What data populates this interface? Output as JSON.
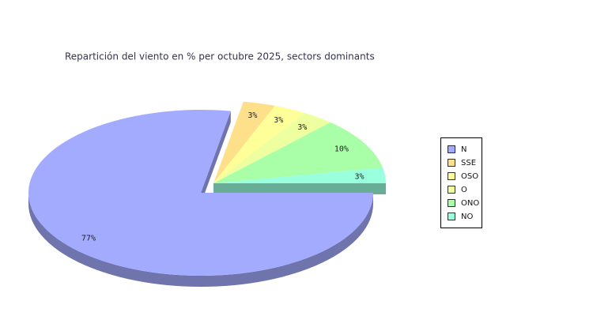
{
  "chart_data": {
    "type": "pie",
    "title": "Repartición del viento en % per octubre 2025, sectors dominants",
    "categories": [
      "N",
      "SSE",
      "OSO",
      "O",
      "ONO",
      "NO"
    ],
    "values": [
      77,
      3,
      3,
      3,
      10,
      3
    ],
    "value_labels": [
      "77%",
      "3%",
      "3%",
      "3%",
      "10%",
      "3%"
    ],
    "colors": [
      "#a3abff",
      "#ffe08a",
      "#ffff99",
      "#eeffa0",
      "#a8ffa8",
      "#99ffdd"
    ],
    "legend": "right"
  }
}
